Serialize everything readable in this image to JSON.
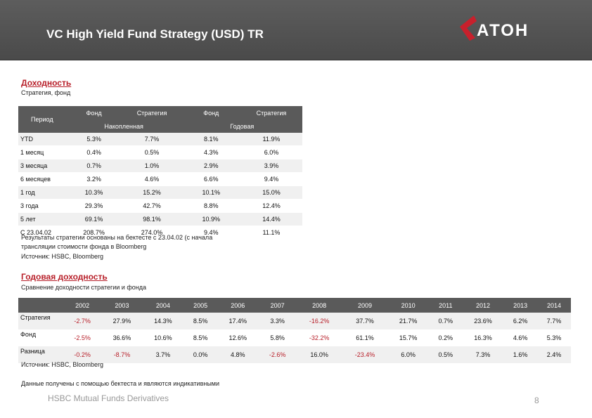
{
  "header": {
    "title": "VC High Yield Fund Strategy (USD) TR",
    "logo_text": "АТОН",
    "accent": "#b8202a"
  },
  "returns": {
    "title": "Доходность",
    "subtitle": "Стратегия, фонд",
    "hdr_period": "Период",
    "hdr_fund": "Фонд",
    "hdr_strategy": "Стратегия",
    "hdr_cumulative": "Накопленная",
    "hdr_annual": "Годовая",
    "rows": [
      [
        "YTD",
        "5.3%",
        "7.7%",
        "8.1%",
        "11.9%"
      ],
      [
        "1 месяц",
        "0.4%",
        "0.5%",
        "4.3%",
        "6.0%"
      ],
      [
        "3 месяца",
        "0.7%",
        "1.0%",
        "2.9%",
        "3.9%"
      ],
      [
        "6 месяцев",
        "3.2%",
        "4.6%",
        "6.6%",
        "9.4%"
      ],
      [
        "1 год",
        "10.3%",
        "15.2%",
        "10.1%",
        "15.0%"
      ],
      [
        "3 года",
        "29.3%",
        "42.7%",
        "8.8%",
        "12.4%"
      ],
      [
        "5 лет",
        "69.1%",
        "98.1%",
        "10.9%",
        "14.4%"
      ],
      [
        "С 23.04.02",
        "208.7%",
        "274.0%",
        "9.4%",
        "11.1%"
      ]
    ],
    "note_line1": "Результаты стратегии основаны на бектесте с 23.04.02 (с начала",
    "note_line2": "трансляции стоимости фонда в Bloomberg",
    "source": "Источник: HSBC, Bloomberg"
  },
  "annual": {
    "title": "Годовая доходность",
    "subtitle": "Сравнение доходности стратегии и фонда",
    "years": [
      "2002",
      "2003",
      "2004",
      "2005",
      "2006",
      "2007",
      "2008",
      "2009",
      "2010",
      "2011",
      "2012",
      "2013",
      "2014"
    ],
    "rows": [
      {
        "label": "Стратегия",
        "values": [
          "-2.7%",
          "27.9%",
          "14.3%",
          "8.5%",
          "17.4%",
          "3.3%",
          "-16.2%",
          "37.7%",
          "21.7%",
          "0.7%",
          "23.6%",
          "6.2%",
          "7.7%"
        ]
      },
      {
        "label": "Фонд",
        "values": [
          "-2.5%",
          "36.6%",
          "10.6%",
          "8.5%",
          "12.6%",
          "5.8%",
          "-32.2%",
          "61.1%",
          "15.7%",
          "0.2%",
          "16.3%",
          "4.6%",
          "5.3%"
        ]
      },
      {
        "label": "Разница",
        "values": [
          "-0.2%",
          "-8.7%",
          "3.7%",
          "0.0%",
          "4.8%",
          "-2.6%",
          "16.0%",
          "-23.4%",
          "6.0%",
          "0.5%",
          "7.3%",
          "1.6%",
          "2.4%"
        ]
      }
    ],
    "source": "Источник: HSBC, Bloomberg",
    "disclaimer": "Данные получены с помощью бектеста и являются индикативными"
  },
  "footer": {
    "text": "HSBC Mutual Funds Derivatives",
    "page": "8"
  }
}
